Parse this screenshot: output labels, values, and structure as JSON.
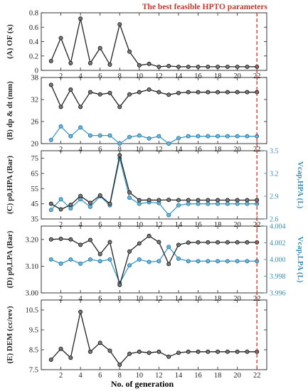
{
  "annotation": {
    "text": "The best feasible HPTO parameters",
    "color": "#c0392b"
  },
  "xaxis_label": "No. of generation",
  "shared_x": {
    "values": [
      1,
      2,
      3,
      4,
      5,
      6,
      7,
      8,
      9,
      10,
      11,
      12,
      13,
      14,
      15,
      16,
      17,
      18,
      19,
      20,
      21,
      22
    ],
    "ticks": [
      2,
      4,
      6,
      8,
      10,
      12,
      14,
      16,
      18,
      20,
      22
    ],
    "xlim": [
      0,
      23
    ],
    "marker_line_x": 22
  },
  "colors": {
    "black_series": "#222222",
    "blue_series": "#3a9ac9",
    "blue_axis": "#3a8fb7",
    "marker_fill": "#777777",
    "marker_fill_blue": "#6fb3d6"
  },
  "chart_data": [
    {
      "type": "line",
      "panel_label": "(A) OF (x)",
      "ylabel": "(A) OF (x)",
      "ylim": [
        0,
        0.8
      ],
      "yticks": [
        0,
        0.2,
        0.4,
        0.6,
        0.8
      ],
      "ytick_labels": [
        "0",
        "0.2",
        "0.4",
        "0.6",
        "0.8"
      ],
      "series": [
        {
          "color": "black",
          "values": [
            0.13,
            0.45,
            0.1,
            0.72,
            0.1,
            0.31,
            0.08,
            0.64,
            0.26,
            0.07,
            0.09,
            0.05,
            0.06,
            0.05,
            0.05,
            0.05,
            0.05,
            0.05,
            0.05,
            0.05,
            0.05,
            0.05
          ]
        }
      ]
    },
    {
      "type": "line",
      "panel_label": "(B) dp & dt (mm)",
      "ylabel": "(B) dp & dt (mm)",
      "ylim": [
        20,
        38
      ],
      "yticks": [
        20,
        26,
        32,
        38
      ],
      "ytick_labels": [
        "20",
        "26",
        "32",
        "38"
      ],
      "series": [
        {
          "color": "black",
          "values": [
            36.0,
            30.0,
            34.7,
            30.0,
            34.0,
            33.4,
            33.8,
            30.0,
            33.4,
            34.0,
            34.7,
            34.0,
            33.3,
            33.8,
            34.0,
            34.0,
            34.0,
            34.0,
            34.0,
            34.0,
            34.0,
            34.0
          ]
        },
        {
          "color": "blue",
          "values": [
            21.0,
            24.7,
            22.0,
            24.4,
            22.2,
            22.2,
            22.2,
            20.0,
            21.8,
            22.2,
            21.4,
            22.0,
            20.0,
            21.5,
            22.0,
            22.0,
            22.0,
            22.0,
            22.0,
            22.0,
            22.0,
            22.0
          ]
        }
      ]
    },
    {
      "type": "line",
      "panel_label": "(C) p0,HPA (Bar)",
      "ylabel": "(C) p0,HPA (Bar)",
      "ylim": [
        35,
        80
      ],
      "yticks": [
        35,
        45,
        55,
        65,
        75
      ],
      "ytick_labels": [
        "35",
        "45",
        "55",
        "65",
        "75"
      ],
      "y2label": "Vcap,HPA (L)",
      "y2lim": [
        2.6,
        3.5
      ],
      "y2ticks": [
        2.6,
        2.9,
        3.2,
        3.5
      ],
      "y2tick_labels": [
        "2.6",
        "2.9",
        "3.2",
        "3.5"
      ],
      "series": [
        {
          "color": "black",
          "axis": "left",
          "values": [
            45.0,
            41.3,
            44.3,
            50.2,
            45.6,
            50.5,
            45.0,
            77.0,
            52.5,
            47.4,
            47.5,
            47.4,
            47.6,
            47.4,
            47.4,
            47.4,
            47.4,
            47.4,
            47.4,
            47.4,
            47.4,
            47.4
          ]
        },
        {
          "color": "blue",
          "axis": "right",
          "values": [
            2.72,
            2.86,
            2.74,
            2.86,
            2.76,
            2.9,
            2.78,
            3.4,
            2.88,
            2.8,
            2.82,
            2.81,
            2.65,
            2.78,
            2.8,
            2.8,
            2.8,
            2.8,
            2.8,
            2.8,
            2.8,
            2.8
          ]
        }
      ]
    },
    {
      "type": "line",
      "panel_label": "(D) p0,LPA (Bar)",
      "ylabel": "(D) p0,LPA (Bar)",
      "ylim": [
        3.0,
        3.25
      ],
      "yticks": [
        3.0,
        3.1,
        3.2
      ],
      "ytick_labels": [
        "3.00",
        "3.10",
        "3.20"
      ],
      "y2label": "Vcap,LPA (L)",
      "y2lim": [
        3.996,
        4.004
      ],
      "y2ticks": [
        3.996,
        3.998,
        4.0,
        4.002,
        4.004
      ],
      "y2tick_labels": [
        "3.996",
        "3.998",
        "4.000",
        "4.002",
        "4.004"
      ],
      "series": [
        {
          "color": "black",
          "axis": "left",
          "values": [
            3.2,
            3.202,
            3.2,
            3.18,
            3.198,
            3.145,
            3.19,
            3.03,
            3.155,
            3.185,
            3.213,
            3.19,
            3.108,
            3.18,
            3.188,
            3.189,
            3.189,
            3.189,
            3.189,
            3.189,
            3.189,
            3.189
          ]
        },
        {
          "color": "blue",
          "axis": "right",
          "values": [
            4.0,
            3.9995,
            4.0,
            3.9995,
            4.0,
            3.9998,
            4.0,
            3.9972,
            3.9993,
            4.0,
            3.9997,
            3.9998,
            4.0015,
            4.0001,
            3.9998,
            3.9998,
            3.9998,
            3.9998,
            3.9998,
            3.9998,
            3.9998,
            3.9998
          ]
        }
      ]
    },
    {
      "type": "line",
      "panel_label": "(E) DEM (cc/rev)",
      "ylabel": "(E) DEM (cc/rev)",
      "ylim": [
        7.5,
        11.0
      ],
      "yticks": [
        7.5,
        8.5,
        9.5,
        10.5
      ],
      "ytick_labels": [
        "7.5",
        "8.5",
        "9.5",
        "10.5"
      ],
      "series": [
        {
          "color": "black",
          "values": [
            8.0,
            8.55,
            8.1,
            10.4,
            8.4,
            8.85,
            8.45,
            7.75,
            8.3,
            8.4,
            8.35,
            8.4,
            8.15,
            8.35,
            8.4,
            8.4,
            8.4,
            8.4,
            8.4,
            8.4,
            8.4,
            8.4
          ]
        }
      ]
    }
  ]
}
